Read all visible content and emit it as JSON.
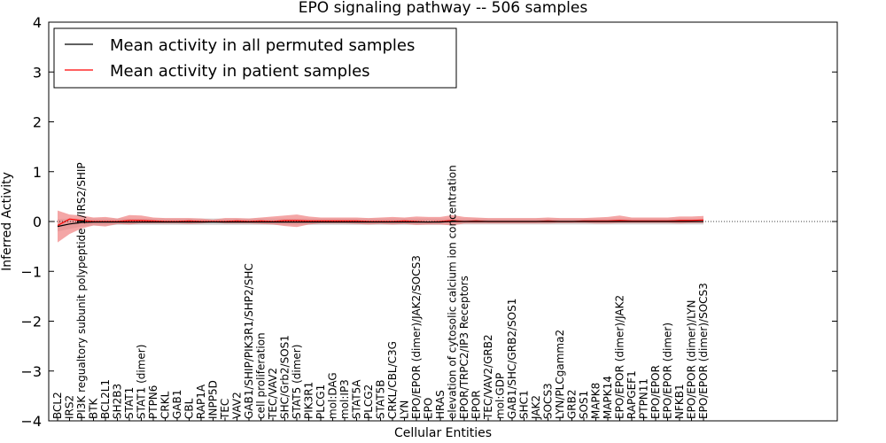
{
  "chart_data": {
    "type": "line",
    "title": "EPO signaling pathway -- 506 samples",
    "xlabel": "Cellular Entities",
    "ylabel": "Inferred Activity",
    "ylim": [
      -4,
      4
    ],
    "yticks": [
      "−4",
      "−3",
      "−2",
      "−1",
      "0",
      "1",
      "2",
      "3",
      "4"
    ],
    "legend_position": "top-left",
    "colors": {
      "permuted": "#000000",
      "patient": "#ff0000",
      "patient_band": "#f08080",
      "permuted_band": "#c8c8c8"
    },
    "categories": [
      "BCL2",
      "IRS2",
      "PI3K regualtory subunit polypeptide 1/IRS2/SHIP",
      "BTK",
      "BCL2L1",
      "SH2B3",
      "STAT1",
      "STAT1 (dimer)",
      "PTPN6",
      "CRKL",
      "GAB1",
      "CBL",
      "RAP1A",
      "INPP5D",
      "TEC",
      "VAV2",
      "GAB1/SHIP/PIK3R1/SHP2/SHC",
      "cell proliferation",
      "TEC/VAV2",
      "SHC/Grb2/SOS1",
      "STAT5 (dimer)",
      "PIK3R1",
      "PLCG1",
      "mol:DAG",
      "mol:IP3",
      "STAT5A",
      "PLCG2",
      "STAT5B",
      "CRKL/CBL/C3G",
      "LYN",
      "EPO/EPOR (dimer)/JAK2/SOCS3",
      "EPO",
      "HRAS",
      "elevation of cytosolic calcium ion concentration",
      "EPOR/TRPC2/IP3 Receptors",
      "EPOR",
      "TEC/VAV2/GRB2",
      "mol:GDP",
      "GAB1/SHC/GRB2/SOS1",
      "SHC1",
      "JAK2",
      "SOCS3",
      "LYN/PLCgamma2",
      "GRB2",
      "SOS1",
      "MAPK8",
      "MAPK14",
      "EPO/EPOR (dimer)/JAK2",
      "RAPGEF1",
      "PTPN11",
      "EPO/EPOR",
      "EPO/EPOR (dimer)",
      "NFKB1",
      "EPO/EPOR (dimer)/LYN",
      "EPO/EPOR (dimer)/SOCS3"
    ],
    "series": [
      {
        "name": "Mean activity in all permuted samples",
        "color": "#000000",
        "values": [
          -0.1,
          -0.05,
          -0.02,
          -0.01,
          -0.01,
          -0.01,
          -0.01,
          -0.01,
          -0.01,
          -0.01,
          -0.01,
          -0.01,
          -0.01,
          -0.01,
          -0.01,
          -0.01,
          -0.01,
          -0.01,
          -0.01,
          -0.01,
          -0.01,
          -0.01,
          -0.01,
          -0.01,
          -0.01,
          -0.01,
          -0.01,
          -0.01,
          -0.01,
          -0.01,
          -0.01,
          -0.01,
          -0.01,
          0.0,
          0.0,
          0.0,
          0.0,
          0.0,
          0.0,
          0.0,
          0.0,
          0.0,
          0.0,
          0.0,
          0.0,
          0.0,
          0.0,
          0.0,
          0.0,
          0.0,
          0.0,
          0.0,
          0.0,
          0.0,
          0.0
        ],
        "band_low": [
          -0.2,
          -0.15,
          -0.1,
          -0.08,
          -0.08,
          -0.07,
          -0.07,
          -0.07,
          -0.07,
          -0.07,
          -0.07,
          -0.07,
          -0.07,
          -0.07,
          -0.07,
          -0.07,
          -0.07,
          -0.07,
          -0.07,
          -0.07,
          -0.07,
          -0.07,
          -0.07,
          -0.07,
          -0.07,
          -0.07,
          -0.07,
          -0.07,
          -0.07,
          -0.07,
          -0.07,
          -0.07,
          -0.07,
          -0.06,
          -0.06,
          -0.06,
          -0.06,
          -0.06,
          -0.06,
          -0.06,
          -0.06,
          -0.06,
          -0.06,
          -0.06,
          -0.06,
          -0.06,
          -0.06,
          -0.06,
          -0.06,
          -0.06,
          -0.06,
          -0.06,
          -0.06,
          -0.06,
          -0.06
        ],
        "band_high": [
          0.05,
          0.06,
          0.06,
          0.06,
          0.06,
          0.06,
          0.06,
          0.06,
          0.06,
          0.06,
          0.06,
          0.06,
          0.06,
          0.06,
          0.06,
          0.06,
          0.06,
          0.06,
          0.06,
          0.06,
          0.06,
          0.06,
          0.06,
          0.06,
          0.06,
          0.06,
          0.06,
          0.06,
          0.06,
          0.06,
          0.06,
          0.06,
          0.06,
          0.06,
          0.06,
          0.06,
          0.06,
          0.06,
          0.06,
          0.06,
          0.06,
          0.06,
          0.06,
          0.06,
          0.06,
          0.06,
          0.06,
          0.06,
          0.06,
          0.06,
          0.06,
          0.06,
          0.06,
          0.06,
          0.06
        ]
      },
      {
        "name": "Mean activity in patient samples",
        "color": "#ff0000",
        "values": [
          -0.08,
          0.05,
          0.02,
          0.0,
          0.0,
          0.0,
          0.02,
          0.02,
          0.01,
          0.0,
          0.0,
          0.01,
          0.0,
          0.0,
          0.0,
          0.01,
          0.0,
          0.01,
          0.0,
          0.02,
          0.02,
          0.01,
          0.01,
          0.01,
          0.01,
          0.01,
          0.0,
          0.0,
          0.0,
          0.01,
          0.0,
          -0.01,
          0.0,
          0.02,
          0.0,
          0.01,
          0.0,
          0.0,
          0.0,
          0.0,
          0.0,
          0.01,
          0.0,
          0.0,
          0.01,
          0.01,
          0.01,
          0.02,
          0.01,
          0.01,
          0.01,
          0.01,
          0.02,
          0.02,
          0.03
        ],
        "band_low": [
          -0.42,
          -0.25,
          -0.14,
          -0.08,
          -0.1,
          -0.05,
          -0.06,
          -0.04,
          -0.04,
          -0.04,
          -0.04,
          -0.05,
          -0.04,
          -0.02,
          -0.04,
          -0.04,
          -0.04,
          -0.05,
          -0.06,
          -0.09,
          -0.11,
          -0.06,
          -0.04,
          -0.04,
          -0.04,
          -0.05,
          -0.06,
          -0.05,
          -0.06,
          -0.05,
          -0.07,
          -0.06,
          -0.06,
          -0.08,
          -0.04,
          -0.04,
          -0.04,
          -0.04,
          -0.04,
          -0.04,
          -0.04,
          -0.04,
          -0.03,
          -0.03,
          -0.03,
          -0.04,
          -0.04,
          -0.03,
          -0.03,
          -0.03,
          -0.03,
          -0.03,
          -0.04,
          -0.03,
          -0.03
        ],
        "band_high": [
          0.22,
          0.14,
          0.12,
          0.08,
          0.09,
          0.06,
          0.13,
          0.12,
          0.08,
          0.07,
          0.07,
          0.07,
          0.06,
          0.04,
          0.07,
          0.07,
          0.06,
          0.08,
          0.1,
          0.12,
          0.14,
          0.1,
          0.08,
          0.08,
          0.08,
          0.08,
          0.07,
          0.08,
          0.09,
          0.08,
          0.1,
          0.09,
          0.09,
          0.13,
          0.09,
          0.08,
          0.07,
          0.07,
          0.07,
          0.07,
          0.07,
          0.08,
          0.07,
          0.07,
          0.07,
          0.08,
          0.09,
          0.12,
          0.08,
          0.08,
          0.08,
          0.08,
          0.1,
          0.1,
          0.11
        ]
      }
    ]
  }
}
